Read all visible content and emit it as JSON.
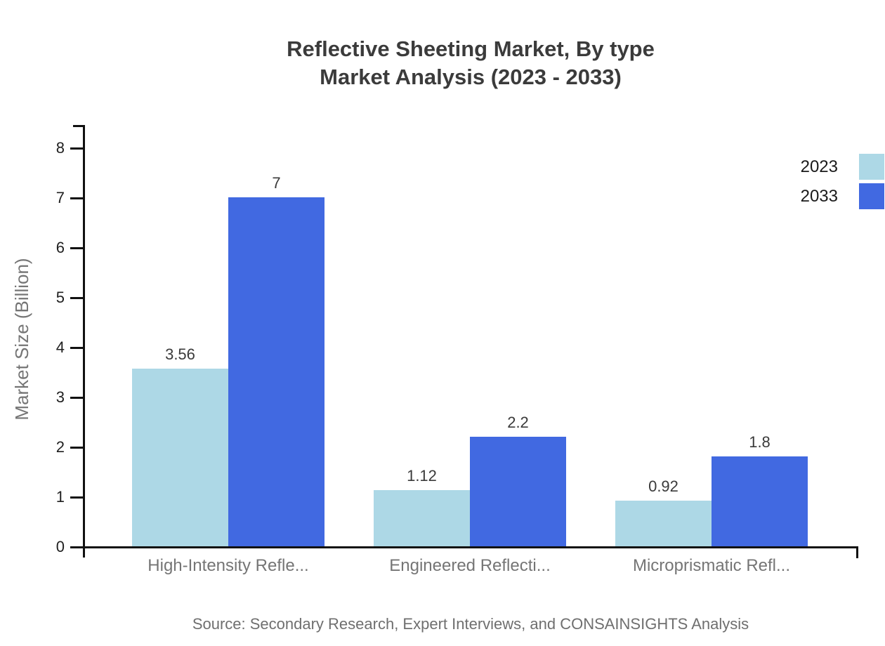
{
  "header": {
    "title_line1": "Reflective Sheeting Market, By type",
    "title_line2": "Market Analysis (2023 - 2033)"
  },
  "axes": {
    "y_label": "Market Size (Billion)"
  },
  "legend": {
    "position": "upper-right",
    "items": [
      {
        "label": "2023",
        "color": "#ADD8E6"
      },
      {
        "label": "2033",
        "color": "#4169E1"
      }
    ]
  },
  "footer": {
    "source": "Source: Secondary Research, Expert Interviews, and CONSAINSIGHTS Analysis"
  },
  "chart_data": {
    "type": "bar",
    "title": "Reflective Sheeting Market, By type — Market Analysis (2023 - 2033)",
    "categories": [
      "High-Intensity Refle...",
      "Engineered Reflecti...",
      "Microprismatic Refl..."
    ],
    "series": [
      {
        "name": "2023",
        "color": "#ADD8E6",
        "values": [
          3.56,
          1.12,
          0.92
        ],
        "labels": [
          "3.56",
          "1.12",
          "0.92"
        ]
      },
      {
        "name": "2033",
        "color": "#4169E1",
        "values": [
          7,
          2.2,
          1.8
        ],
        "labels": [
          "7",
          "2.2",
          "1.8"
        ]
      }
    ],
    "xlabel": "",
    "ylabel": "Market Size (Billion)",
    "yticks": [
      0,
      1,
      2,
      3,
      4,
      5,
      6,
      7,
      8
    ],
    "ylim": [
      0,
      8.45
    ],
    "grid": false,
    "legend_position": "upper-right",
    "source": "Source: Secondary Research, Expert Interviews, and CONSAINSIGHTS Analysis"
  }
}
